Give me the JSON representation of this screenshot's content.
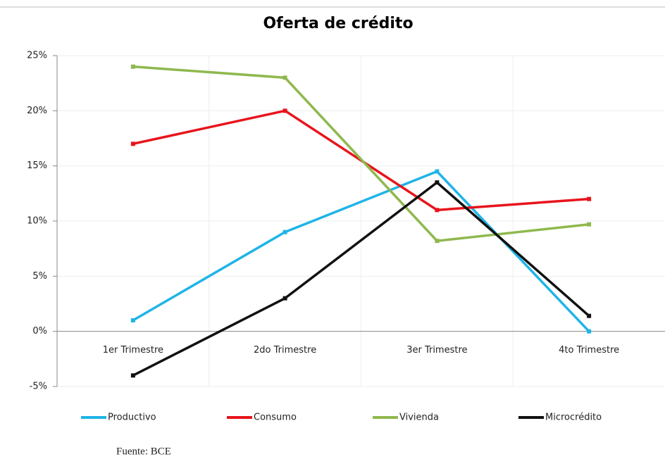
{
  "chart_data": {
    "type": "line",
    "title": "Oferta de crédito",
    "categories": [
      "1er Trimestre",
      "2do Trimestre",
      "3er Trimestre",
      "4to Trimestre"
    ],
    "series": [
      {
        "name": "Productivo",
        "color": "#1fb4e8",
        "values": [
          1,
          9,
          14.5,
          0
        ]
      },
      {
        "name": "Consumo",
        "color": "#e8141c",
        "values": [
          17,
          20,
          11,
          12
        ]
      },
      {
        "name": "Vivienda",
        "color": "#8fb84e",
        "values": [
          24,
          23,
          8.2,
          9.7
        ]
      },
      {
        "name": "Microcrédito",
        "color": "#111111",
        "values": [
          -4,
          3,
          13.5,
          1.4
        ]
      }
    ],
    "ylim": [
      -5,
      25
    ],
    "yticks": [
      {
        "value": -5,
        "label": "-5%"
      },
      {
        "value": 0,
        "label": "0%"
      },
      {
        "value": 5,
        "label": "5%"
      },
      {
        "value": 10,
        "label": "10%"
      },
      {
        "value": 15,
        "label": "15%"
      },
      {
        "value": 20,
        "label": "20%"
      },
      {
        "value": 25,
        "label": "25%"
      }
    ],
    "grid": true,
    "legend": "bottom",
    "source": "Fuente: BCE"
  }
}
